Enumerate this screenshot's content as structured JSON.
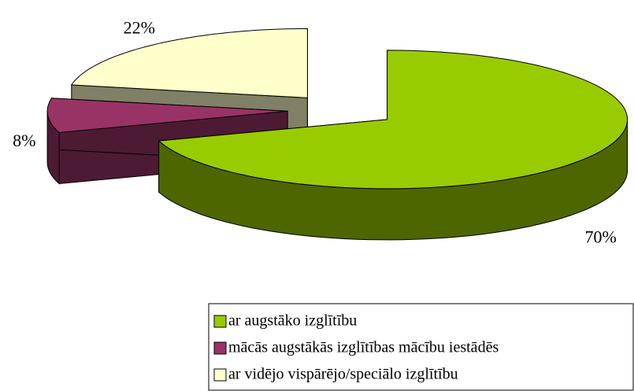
{
  "chart_data": {
    "type": "pie",
    "categories": [
      "ar augstāko izglītību",
      "mācās augstākās izglītības mācību iestādēs",
      "ar vidējo vispārējo/speciālo izglītību"
    ],
    "values": [
      70,
      8,
      22
    ],
    "value_labels": [
      "70%",
      "8%",
      "22%"
    ],
    "colors": [
      "#99cc00",
      "#993366",
      "#ffffcc"
    ],
    "legend": "bottom-right"
  }
}
